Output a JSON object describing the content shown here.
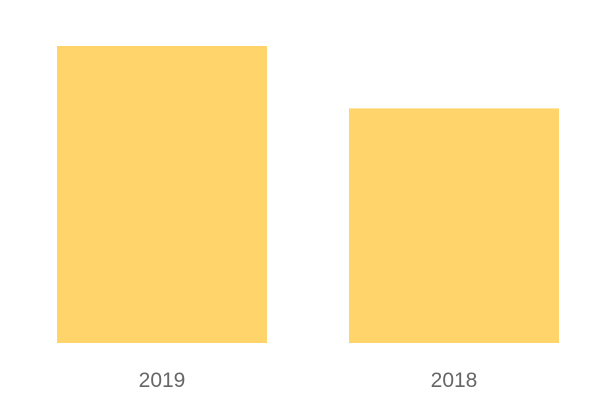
{
  "chart_data": {
    "type": "bar",
    "categories": [
      "2019",
      "2018"
    ],
    "values": [
      1.0,
      0.79
    ],
    "ylim": [
      0,
      1.0
    ],
    "grid": false,
    "bar_color": "#FFD56B",
    "tick_color": "#666666"
  }
}
